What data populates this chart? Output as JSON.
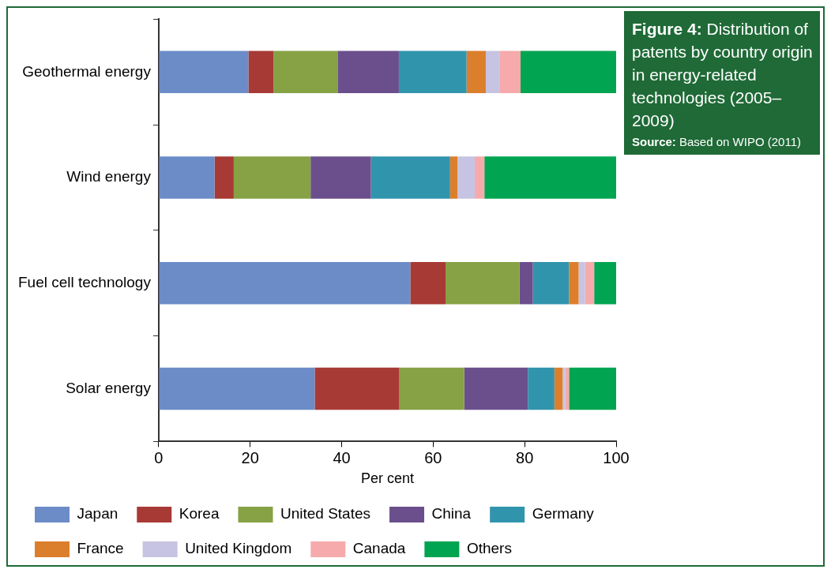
{
  "chart_data": {
    "type": "bar",
    "orientation": "horizontal",
    "stacked": true,
    "title": "Figure 4: Distribution of patents by country origin in energy-related technologies (2005–2009)",
    "annotations": [
      "Source: Based on WIPO (2011)"
    ],
    "xlabel": "Per cent",
    "categories": [
      "Geothermal energy",
      "Wind energy",
      "Fuel cell technology",
      "Solar energy"
    ],
    "xlim": [
      0,
      100
    ],
    "xticks": [
      0,
      20,
      40,
      60,
      80,
      100
    ],
    "grid": false,
    "legend": "bottom",
    "series": [
      {
        "name": "Japan",
        "color": "#6b8cc7",
        "values": [
          19.6,
          12.2,
          55.0,
          34.1
        ]
      },
      {
        "name": "Korea",
        "color": "#a83a36",
        "values": [
          5.5,
          4.2,
          7.7,
          18.5
        ]
      },
      {
        "name": "United States",
        "color": "#86a244",
        "values": [
          14.0,
          16.8,
          16.2,
          14.2
        ]
      },
      {
        "name": "China",
        "color": "#6b4f8c",
        "values": [
          13.4,
          13.2,
          2.9,
          13.9
        ]
      },
      {
        "name": "Germany",
        "color": "#3194ad",
        "values": [
          14.8,
          17.3,
          7.9,
          5.8
        ]
      },
      {
        "name": "France",
        "color": "#dc7f2c",
        "values": [
          4.2,
          1.6,
          2.1,
          1.8
        ]
      },
      {
        "name": "United Kingdom",
        "color": "#c7c3e2",
        "values": [
          3.1,
          3.8,
          1.4,
          0.6
        ]
      },
      {
        "name": "Canada",
        "color": "#f6aaab",
        "values": [
          4.5,
          2.1,
          2.0,
          0.8
        ]
      },
      {
        "name": "Others",
        "color": "#00a451",
        "values": [
          20.9,
          28.8,
          4.8,
          10.3
        ]
      }
    ]
  }
}
